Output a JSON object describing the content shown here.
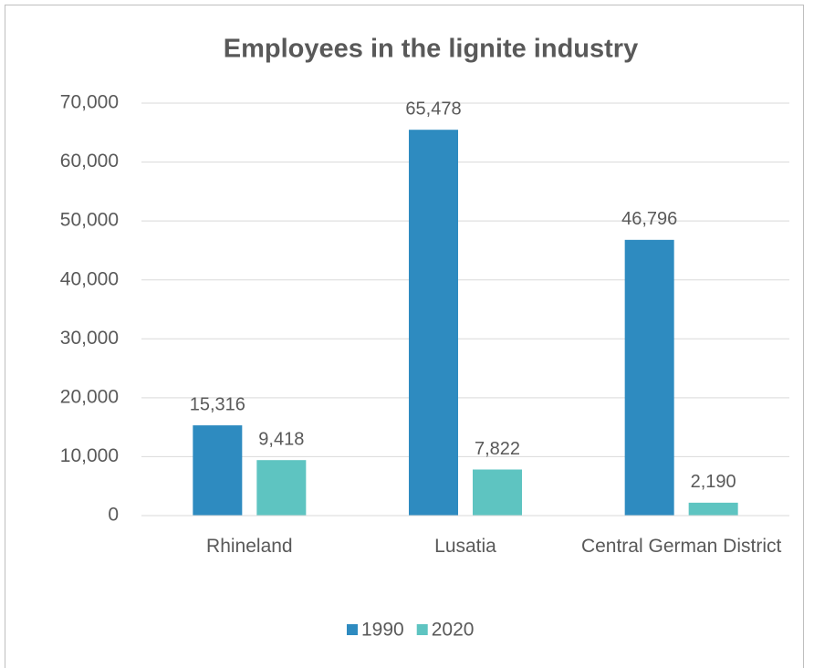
{
  "chart_data": {
    "type": "bar",
    "title": "Employees in the lignite industry",
    "categories": [
      "Rhineland",
      "Lusatia",
      "Central German District"
    ],
    "series": [
      {
        "name": "1990",
        "color": "#2e8bc0",
        "values": [
          15316,
          65478,
          46796
        ],
        "value_labels": [
          "15,316",
          "65,478",
          "46,796"
        ]
      },
      {
        "name": "2020",
        "color": "#5ec4c1",
        "values": [
          9418,
          7822,
          2190
        ],
        "value_labels": [
          "9,418",
          "7,822",
          "2,190"
        ]
      }
    ],
    "ylim": [
      0,
      70000
    ],
    "yticks": [
      0,
      {
        "value": 10000,
        "label": "10,000"
      },
      {
        "value": 20000,
        "label": "20,000"
      },
      {
        "value": 30000,
        "label": "30,000"
      },
      {
        "value": 40000,
        "label": "40,000"
      },
      {
        "value": 50000,
        "label": "50,000"
      },
      {
        "value": 60000,
        "label": "60,000"
      },
      {
        "value": 70000,
        "label": "70,000"
      }
    ],
    "grid": true,
    "legend": "bottom"
  }
}
